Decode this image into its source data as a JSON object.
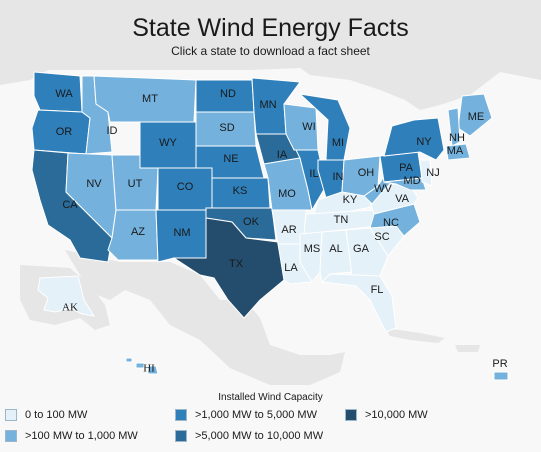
{
  "title": "State Wind Energy Facts",
  "subtitle": "Click a state to download a fact sheet",
  "colors": {
    "c1": "#e4f1f8",
    "c2": "#74b2dd",
    "c3": "#2f7fba",
    "c4": "#2a6b99",
    "c5": "#234c6d",
    "land": "#e6e6e6",
    "water": "#f8f8f8"
  },
  "states": {
    "WA": {
      "label": "WA",
      "class": "c3"
    },
    "OR": {
      "label": "OR",
      "class": "c3"
    },
    "CA": {
      "label": "CA",
      "class": "c4"
    },
    "ID": {
      "label": "ID",
      "class": "c2"
    },
    "NV": {
      "label": "NV",
      "class": "c2"
    },
    "MT": {
      "label": "MT",
      "class": "c2"
    },
    "WY": {
      "label": "WY",
      "class": "c3"
    },
    "UT": {
      "label": "UT",
      "class": "c2"
    },
    "AZ": {
      "label": "AZ",
      "class": "c2"
    },
    "CO": {
      "label": "CO",
      "class": "c3"
    },
    "NM": {
      "label": "NM",
      "class": "c3"
    },
    "ND": {
      "label": "ND",
      "class": "c3"
    },
    "SD": {
      "label": "SD",
      "class": "c2"
    },
    "NE": {
      "label": "NE",
      "class": "c3"
    },
    "KS": {
      "label": "KS",
      "class": "c3"
    },
    "OK": {
      "label": "OK",
      "class": "c4"
    },
    "TX": {
      "label": "TX",
      "class": "c5"
    },
    "MN": {
      "label": "MN",
      "class": "c3"
    },
    "IA": {
      "label": "IA",
      "class": "c4"
    },
    "MO": {
      "label": "MO",
      "class": "c2"
    },
    "AR": {
      "label": "AR",
      "class": "c1"
    },
    "LA": {
      "label": "LA",
      "class": "c1"
    },
    "WI": {
      "label": "WI",
      "class": "c2"
    },
    "IL": {
      "label": "IL",
      "class": "c3"
    },
    "MI": {
      "label": "MI",
      "class": "c3"
    },
    "IN": {
      "label": "IN",
      "class": "c3"
    },
    "OH": {
      "label": "OH",
      "class": "c2"
    },
    "KY": {
      "label": "KY",
      "class": "c1"
    },
    "TN": {
      "label": "TN",
      "class": "c1"
    },
    "MS": {
      "label": "MS",
      "class": "c1"
    },
    "AL": {
      "label": "AL",
      "class": "c1"
    },
    "GA": {
      "label": "GA",
      "class": "c1"
    },
    "FL": {
      "label": "FL",
      "class": "c1"
    },
    "SC": {
      "label": "SC",
      "class": "c1"
    },
    "NC": {
      "label": "NC",
      "class": "c2"
    },
    "VA": {
      "label": "VA",
      "class": "c1"
    },
    "WV": {
      "label": "WV",
      "class": "c2"
    },
    "PA": {
      "label": "PA",
      "class": "c3"
    },
    "NY": {
      "label": "NY",
      "class": "c3"
    },
    "MD": {
      "label": "MD",
      "class": "c2"
    },
    "NJ": {
      "label": "NJ",
      "class": "c1"
    },
    "ME": {
      "label": "ME",
      "class": "c2"
    },
    "NH": {
      "label": "NH",
      "class": "c2"
    },
    "MA": {
      "label": "MA",
      "class": "c2"
    },
    "AK": {
      "label": "AK",
      "class": "c1"
    },
    "HI": {
      "label": "HI",
      "class": "c2"
    },
    "PR": {
      "label": "PR",
      "class": "c2"
    }
  },
  "legend": {
    "title": "Installed Wind Capacity",
    "items": [
      {
        "label": "0 to 100 MW",
        "class": "c1"
      },
      {
        "label": ">100 MW to 1,000 MW",
        "class": "c2"
      },
      {
        "label": ">1,000 MW to 5,000 MW",
        "class": "c3"
      },
      {
        "label": ">5,000 MW to 10,000 MW",
        "class": "c4"
      },
      {
        "label": ">10,000 MW",
        "class": "c5"
      }
    ]
  }
}
